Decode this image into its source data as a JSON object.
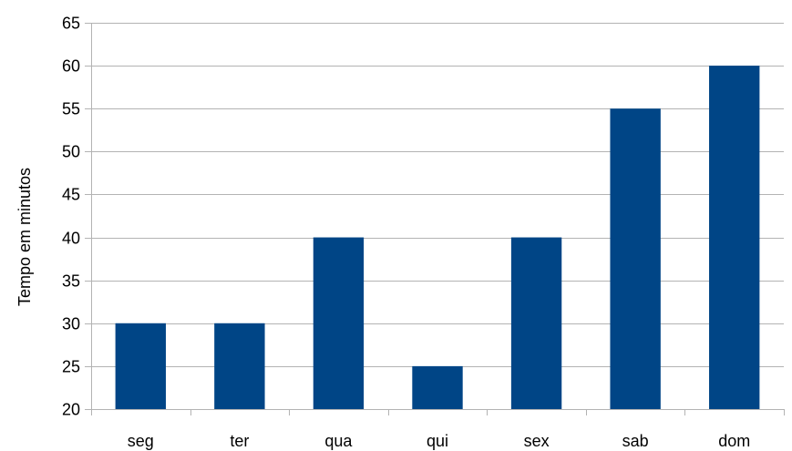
{
  "chart_data": {
    "type": "bar",
    "categories": [
      "seg",
      "ter",
      "qua",
      "qui",
      "sex",
      "sab",
      "dom"
    ],
    "values": [
      30,
      30,
      40,
      25,
      40,
      55,
      60
    ],
    "title": "",
    "xlabel": "",
    "ylabel": "Tempo em minutos",
    "ylim": [
      20,
      65
    ],
    "yticks": [
      20,
      25,
      30,
      35,
      40,
      45,
      50,
      55,
      60,
      65
    ],
    "grid": true,
    "legend": "none",
    "bar_color": "#004586"
  }
}
